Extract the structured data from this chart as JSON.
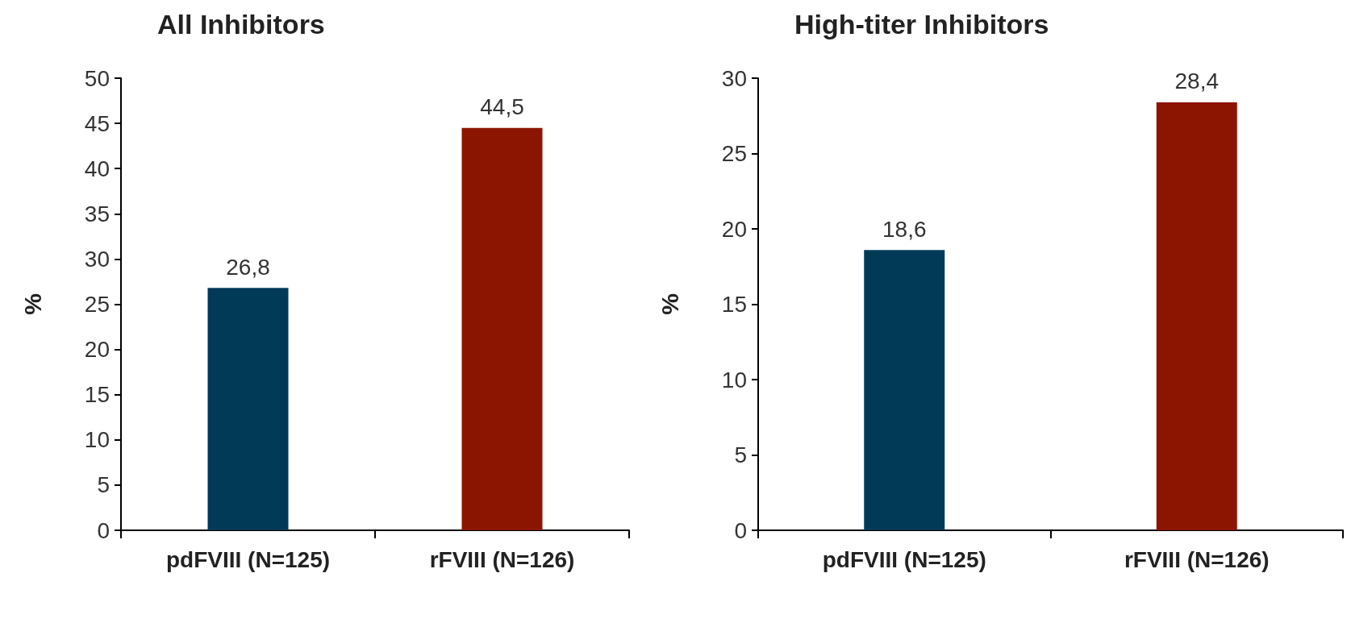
{
  "chart_data": [
    {
      "type": "bar",
      "title": "All Inhibitors",
      "ylabel": "%",
      "categories": [
        "pdFVIII (N=125)",
        "rFVIII (N=126)"
      ],
      "values": [
        26.8,
        44.5
      ],
      "colors": [
        "#003a57",
        "#8b1500"
      ],
      "value_labels": [
        "26,8",
        "44,5"
      ],
      "ylim": [
        0,
        50
      ],
      "yticks": [
        0,
        5,
        10,
        15,
        20,
        25,
        30,
        35,
        40,
        45,
        50
      ],
      "grid": false
    },
    {
      "type": "bar",
      "title": "High-titer Inhibitors",
      "ylabel": "%",
      "categories": [
        "pdFVIII (N=125)",
        "rFVIII (N=126)"
      ],
      "values": [
        18.6,
        28.4
      ],
      "colors": [
        "#003a57",
        "#8b1500"
      ],
      "value_labels": [
        "18,6",
        "28,4"
      ],
      "ylim": [
        0,
        30
      ],
      "yticks": [
        0,
        5,
        10,
        15,
        20,
        25,
        30
      ],
      "grid": false
    }
  ]
}
